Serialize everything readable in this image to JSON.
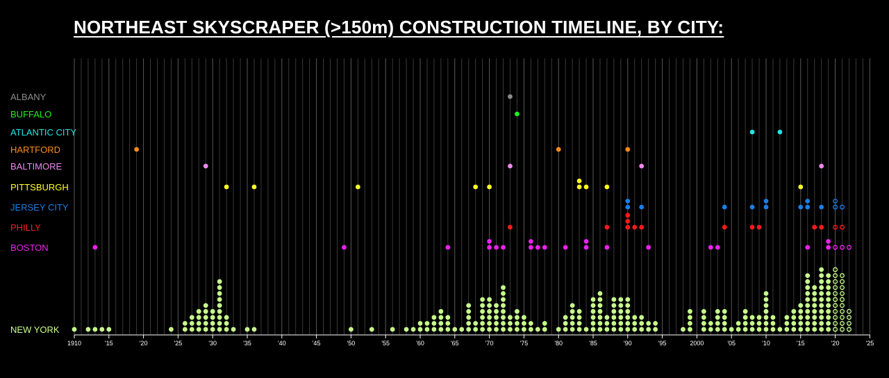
{
  "chart_data": {
    "type": "scatter",
    "title": "NORTHEAST SKYSCRAPER (>150m) CONSTRUCTION TIMELINE, BY CITY:",
    "xlabel": "",
    "ylabel": "",
    "x_range": [
      1910,
      2025
    ],
    "grid": "vertical lines every year",
    "legend": "none; row labels on left",
    "note": "Each dot is one building completed in that year; hollow dots are under construction / planned",
    "x_ticks": [
      "1910",
      "'15",
      "'20",
      "'25",
      "'30",
      "'35",
      "'40",
      "'45",
      "'50",
      "'55",
      "'60",
      "'65",
      "'70",
      "'75",
      "'80",
      "'85",
      "'90",
      "'95",
      "2000",
      "'05",
      "'10",
      "'15",
      "'20",
      "'25"
    ],
    "series": [
      {
        "name": "ALBANY",
        "color": "#8c8c8c",
        "values": [
          {
            "x": 1973,
            "count": 1
          }
        ]
      },
      {
        "name": "BUFFALO",
        "color": "#22ee22",
        "values": [
          {
            "x": 1974,
            "count": 1
          }
        ]
      },
      {
        "name": "ATLANTIC CITY",
        "color": "#22e6e6",
        "values": [
          {
            "x": 2008,
            "count": 1
          },
          {
            "x": 2012,
            "count": 1
          }
        ]
      },
      {
        "name": "HARTFORD",
        "color": "#ff8c1a",
        "values": [
          {
            "x": 1919,
            "count": 1
          },
          {
            "x": 1980,
            "count": 1
          },
          {
            "x": 1990,
            "count": 1
          }
        ]
      },
      {
        "name": "BALTIMORE",
        "color": "#ee88ee",
        "values": [
          {
            "x": 1929,
            "count": 1
          },
          {
            "x": 1973,
            "count": 1
          },
          {
            "x": 1992,
            "count": 1
          },
          {
            "x": 2018,
            "count": 1
          }
        ]
      },
      {
        "name": "PITTSBURGH",
        "color": "#ffff22",
        "values": [
          {
            "x": 1932,
            "count": 1
          },
          {
            "x": 1936,
            "count": 1
          },
          {
            "x": 1951,
            "count": 1
          },
          {
            "x": 1968,
            "count": 1
          },
          {
            "x": 1970,
            "count": 1
          },
          {
            "x": 1983,
            "count": 2
          },
          {
            "x": 1984,
            "count": 1
          },
          {
            "x": 1987,
            "count": 1
          },
          {
            "x": 2015,
            "count": 1
          }
        ]
      },
      {
        "name": "JERSEY CITY",
        "color": "#1a7fe6",
        "values": [
          {
            "x": 1990,
            "count": 2
          },
          {
            "x": 1992,
            "count": 1
          },
          {
            "x": 2004,
            "count": 1
          },
          {
            "x": 2008,
            "count": 1
          },
          {
            "x": 2010,
            "count": 2
          },
          {
            "x": 2015,
            "count": 1
          },
          {
            "x": 2016,
            "count": 2
          },
          {
            "x": 2018,
            "count": 1
          },
          {
            "x": 2020,
            "count": 2,
            "planned": true
          },
          {
            "x": 2021,
            "count": 1,
            "planned": true
          }
        ]
      },
      {
        "name": "PHILLY",
        "color": "#ff1a1a",
        "values": [
          {
            "x": 1973,
            "count": 1
          },
          {
            "x": 1987,
            "count": 1
          },
          {
            "x": 1990,
            "count": 3
          },
          {
            "x": 1991,
            "count": 1
          },
          {
            "x": 1992,
            "count": 1
          },
          {
            "x": 2004,
            "count": 1
          },
          {
            "x": 2008,
            "count": 1
          },
          {
            "x": 2009,
            "count": 1
          },
          {
            "x": 2017,
            "count": 1
          },
          {
            "x": 2018,
            "count": 1
          },
          {
            "x": 2020,
            "count": 1,
            "planned": true
          },
          {
            "x": 2021,
            "count": 1,
            "planned": true
          }
        ]
      },
      {
        "name": "BOSTON",
        "color": "#ee22ee",
        "values": [
          {
            "x": 1913,
            "count": 1
          },
          {
            "x": 1949,
            "count": 1
          },
          {
            "x": 1964,
            "count": 1
          },
          {
            "x": 1970,
            "count": 2
          },
          {
            "x": 1971,
            "count": 1
          },
          {
            "x": 1972,
            "count": 1
          },
          {
            "x": 1976,
            "count": 2
          },
          {
            "x": 1977,
            "count": 1
          },
          {
            "x": 1978,
            "count": 1
          },
          {
            "x": 1981,
            "count": 1
          },
          {
            "x": 1984,
            "count": 2
          },
          {
            "x": 1987,
            "count": 1
          },
          {
            "x": 1993,
            "count": 1
          },
          {
            "x": 2002,
            "count": 1
          },
          {
            "x": 2003,
            "count": 1
          },
          {
            "x": 2016,
            "count": 1
          },
          {
            "x": 2019,
            "count": 2
          },
          {
            "x": 2020,
            "count": 1,
            "planned": true
          },
          {
            "x": 2021,
            "count": 1,
            "planned": true
          },
          {
            "x": 2022,
            "count": 1,
            "planned": true
          }
        ]
      },
      {
        "name": "NEW YORK",
        "color": "#c8ff8c",
        "values": [
          {
            "x": 1910,
            "count": 1
          },
          {
            "x": 1912,
            "count": 1
          },
          {
            "x": 1913,
            "count": 1
          },
          {
            "x": 1914,
            "count": 1
          },
          {
            "x": 1915,
            "count": 1
          },
          {
            "x": 1924,
            "count": 1
          },
          {
            "x": 1926,
            "count": 2
          },
          {
            "x": 1927,
            "count": 3
          },
          {
            "x": 1928,
            "count": 4
          },
          {
            "x": 1929,
            "count": 5
          },
          {
            "x": 1930,
            "count": 4
          },
          {
            "x": 1931,
            "count": 9
          },
          {
            "x": 1932,
            "count": 3
          },
          {
            "x": 1933,
            "count": 1
          },
          {
            "x": 1935,
            "count": 1
          },
          {
            "x": 1936,
            "count": 1
          },
          {
            "x": 1950,
            "count": 1
          },
          {
            "x": 1953,
            "count": 1
          },
          {
            "x": 1956,
            "count": 1
          },
          {
            "x": 1958,
            "count": 1
          },
          {
            "x": 1959,
            "count": 1
          },
          {
            "x": 1960,
            "count": 2
          },
          {
            "x": 1961,
            "count": 2
          },
          {
            "x": 1962,
            "count": 3
          },
          {
            "x": 1963,
            "count": 4
          },
          {
            "x": 1964,
            "count": 3
          },
          {
            "x": 1965,
            "count": 1
          },
          {
            "x": 1966,
            "count": 1
          },
          {
            "x": 1967,
            "count": 5
          },
          {
            "x": 1968,
            "count": 2
          },
          {
            "x": 1969,
            "count": 6
          },
          {
            "x": 1970,
            "count": 6
          },
          {
            "x": 1971,
            "count": 5
          },
          {
            "x": 1972,
            "count": 8
          },
          {
            "x": 1973,
            "count": 3
          },
          {
            "x": 1974,
            "count": 4
          },
          {
            "x": 1975,
            "count": 3
          },
          {
            "x": 1976,
            "count": 2
          },
          {
            "x": 1977,
            "count": 1
          },
          {
            "x": 1978,
            "count": 2
          },
          {
            "x": 1980,
            "count": 1
          },
          {
            "x": 1981,
            "count": 3
          },
          {
            "x": 1982,
            "count": 5
          },
          {
            "x": 1983,
            "count": 4
          },
          {
            "x": 1984,
            "count": 1
          },
          {
            "x": 1985,
            "count": 6
          },
          {
            "x": 1986,
            "count": 7
          },
          {
            "x": 1987,
            "count": 3
          },
          {
            "x": 1988,
            "count": 6
          },
          {
            "x": 1989,
            "count": 6
          },
          {
            "x": 1990,
            "count": 6
          },
          {
            "x": 1991,
            "count": 3
          },
          {
            "x": 1992,
            "count": 3
          },
          {
            "x": 1993,
            "count": 2
          },
          {
            "x": 1994,
            "count": 2
          },
          {
            "x": 1998,
            "count": 1
          },
          {
            "x": 1999,
            "count": 4
          },
          {
            "x": 2001,
            "count": 4
          },
          {
            "x": 2002,
            "count": 2
          },
          {
            "x": 2003,
            "count": 4
          },
          {
            "x": 2004,
            "count": 4
          },
          {
            "x": 2005,
            "count": 1
          },
          {
            "x": 2006,
            "count": 2
          },
          {
            "x": 2007,
            "count": 4
          },
          {
            "x": 2008,
            "count": 3
          },
          {
            "x": 2009,
            "count": 3
          },
          {
            "x": 2010,
            "count": 7
          },
          {
            "x": 2011,
            "count": 3
          },
          {
            "x": 2012,
            "count": 1
          },
          {
            "x": 2013,
            "count": 3
          },
          {
            "x": 2014,
            "count": 4
          },
          {
            "x": 2015,
            "count": 5
          },
          {
            "x": 2016,
            "count": 10
          },
          {
            "x": 2017,
            "count": 8
          },
          {
            "x": 2018,
            "count": 11
          },
          {
            "x": 2019,
            "count": 10
          },
          {
            "x": 2020,
            "count": 11,
            "planned": true
          },
          {
            "x": 2021,
            "count": 10,
            "planned": true
          },
          {
            "x": 2022,
            "count": 4,
            "planned": true
          }
        ]
      }
    ]
  }
}
